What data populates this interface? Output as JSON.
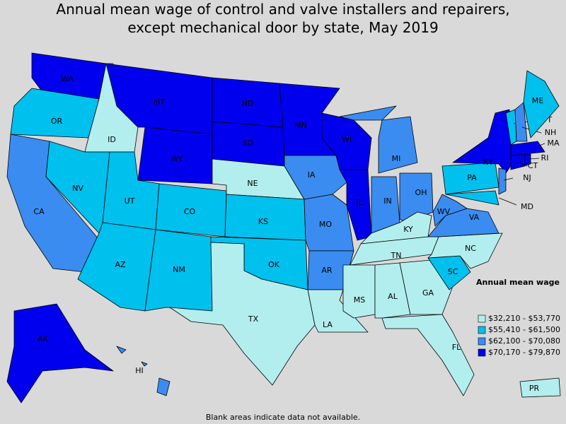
{
  "title": [
    "Annual mean wage of control and valve installers and repairers,",
    "except mechanical door by state, May 2019"
  ],
  "legend": {
    "title": "Annual mean wage",
    "items": [
      {
        "label": "$32,210 - $53,770",
        "color": "#b3eeee"
      },
      {
        "label": "$55,410 - $61,500",
        "color": "#00c0ee"
      },
      {
        "label": "$62,100 - $70,080",
        "color": "#3b8cf0"
      },
      {
        "label": "$70,170 - $79,870",
        "color": "#0000ee"
      }
    ]
  },
  "states": [
    {
      "label": "WA",
      "bin": 3
    },
    {
      "label": "OR",
      "bin": 1
    },
    {
      "label": "CA",
      "bin": 2
    },
    {
      "label": "ID",
      "bin": 0
    },
    {
      "label": "NV",
      "bin": 1
    },
    {
      "label": "MT",
      "bin": 3
    },
    {
      "label": "WY",
      "bin": 3
    },
    {
      "label": "UT",
      "bin": 1
    },
    {
      "label": "AZ",
      "bin": 1
    },
    {
      "label": "CO",
      "bin": 1
    },
    {
      "label": "NM",
      "bin": 1
    },
    {
      "label": "ND",
      "bin": 3
    },
    {
      "label": "SD",
      "bin": 3
    },
    {
      "label": "NE",
      "bin": 0
    },
    {
      "label": "KS",
      "bin": 1
    },
    {
      "label": "OK",
      "bin": 1
    },
    {
      "label": "TX",
      "bin": 0
    },
    {
      "label": "MN",
      "bin": 3
    },
    {
      "label": "IA",
      "bin": 2
    },
    {
      "label": "MO",
      "bin": 2
    },
    {
      "label": "AR",
      "bin": 2
    },
    {
      "label": "LA",
      "bin": 0
    },
    {
      "label": "WI",
      "bin": 3
    },
    {
      "label": "IL",
      "bin": 3
    },
    {
      "label": "MI",
      "bin": 2
    },
    {
      "label": "IN",
      "bin": 2
    },
    {
      "label": "OH",
      "bin": 2
    },
    {
      "label": "KY",
      "bin": 0
    },
    {
      "label": "TN",
      "bin": 0
    },
    {
      "label": "MS",
      "bin": 0
    },
    {
      "label": "AL",
      "bin": 0
    },
    {
      "label": "GA",
      "bin": 0
    },
    {
      "label": "FL",
      "bin": 0
    },
    {
      "label": "SC",
      "bin": 1
    },
    {
      "label": "NC",
      "bin": 0
    },
    {
      "label": "VA",
      "bin": 2
    },
    {
      "label": "WV",
      "bin": 2
    },
    {
      "label": "PA",
      "bin": 1
    },
    {
      "label": "NY",
      "bin": 3
    },
    {
      "label": "NJ",
      "bin": 2
    },
    {
      "label": "MD",
      "bin": 1
    },
    {
      "label": "VT",
      "bin": 1
    },
    {
      "label": "NH",
      "bin": 2
    },
    {
      "label": "ME",
      "bin": 1
    },
    {
      "label": "MA",
      "bin": 3
    },
    {
      "label": "CT",
      "bin": 3
    },
    {
      "label": "RI",
      "bin": 3
    },
    {
      "label": "AK",
      "bin": 3
    },
    {
      "label": "HI",
      "bin": 2
    },
    {
      "label": "PR",
      "bin": 0
    }
  ],
  "footnote": "Blank areas indicate data not available."
}
